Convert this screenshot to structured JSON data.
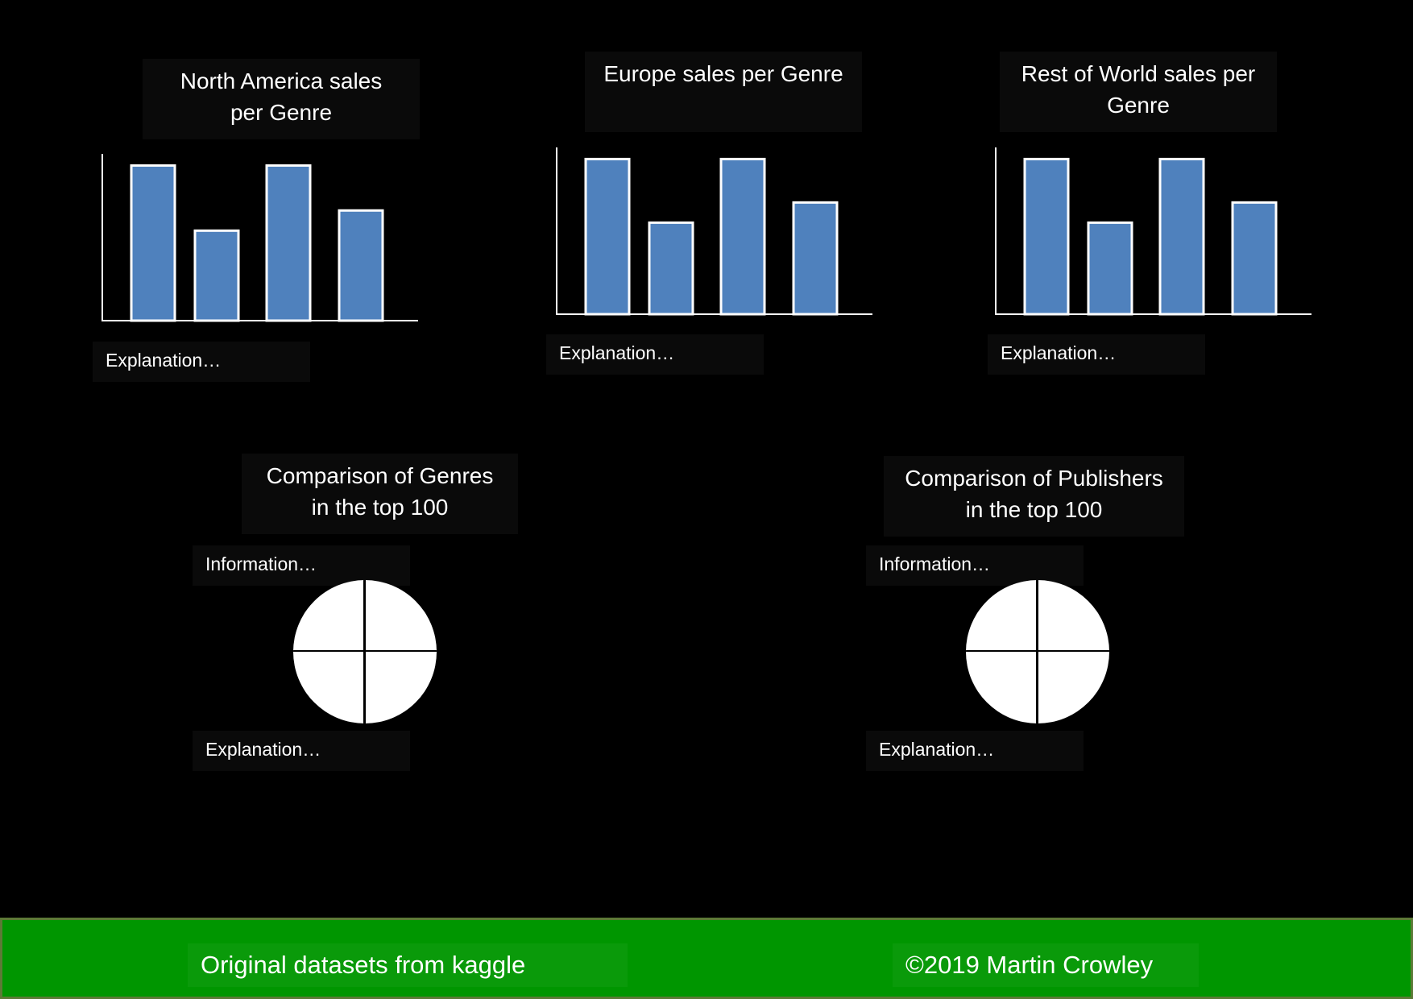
{
  "theme": {
    "bar_fill": "#4f81bd",
    "bar_stroke": "#ffffff",
    "footer_bg": "#009600"
  },
  "charts": [
    {
      "title": "North America sales per Genre",
      "explanation": "Explanation…"
    },
    {
      "title": "Europe sales per Genre",
      "explanation": "Explanation…"
    },
    {
      "title": "Rest of World sales per Genre",
      "explanation": "Explanation…"
    }
  ],
  "chart_data": [
    {
      "type": "bar",
      "categories": [
        "",
        "",
        "",
        ""
      ],
      "values": [
        1.0,
        0.58,
        1.0,
        0.71
      ],
      "ylim": [
        0,
        1.08
      ]
    },
    {
      "type": "bar",
      "categories": [
        "",
        "",
        "",
        ""
      ],
      "values": [
        1.0,
        0.59,
        1.0,
        0.72
      ],
      "ylim": [
        0,
        1.08
      ]
    },
    {
      "type": "bar",
      "categories": [
        "",
        "",
        "",
        ""
      ],
      "values": [
        1.0,
        0.59,
        1.0,
        0.72
      ],
      "ylim": [
        0,
        1.08
      ]
    }
  ],
  "pies": [
    {
      "title": "Comparison of Genres in the top 100",
      "information": "Information…",
      "explanation": "Explanation…"
    },
    {
      "title": "Comparison of Publishers in the top 100",
      "information": "Information…",
      "explanation": "Explanation…"
    }
  ],
  "footer": {
    "left": "Original datasets from kaggle",
    "right": "©2019 Martin Crowley"
  }
}
